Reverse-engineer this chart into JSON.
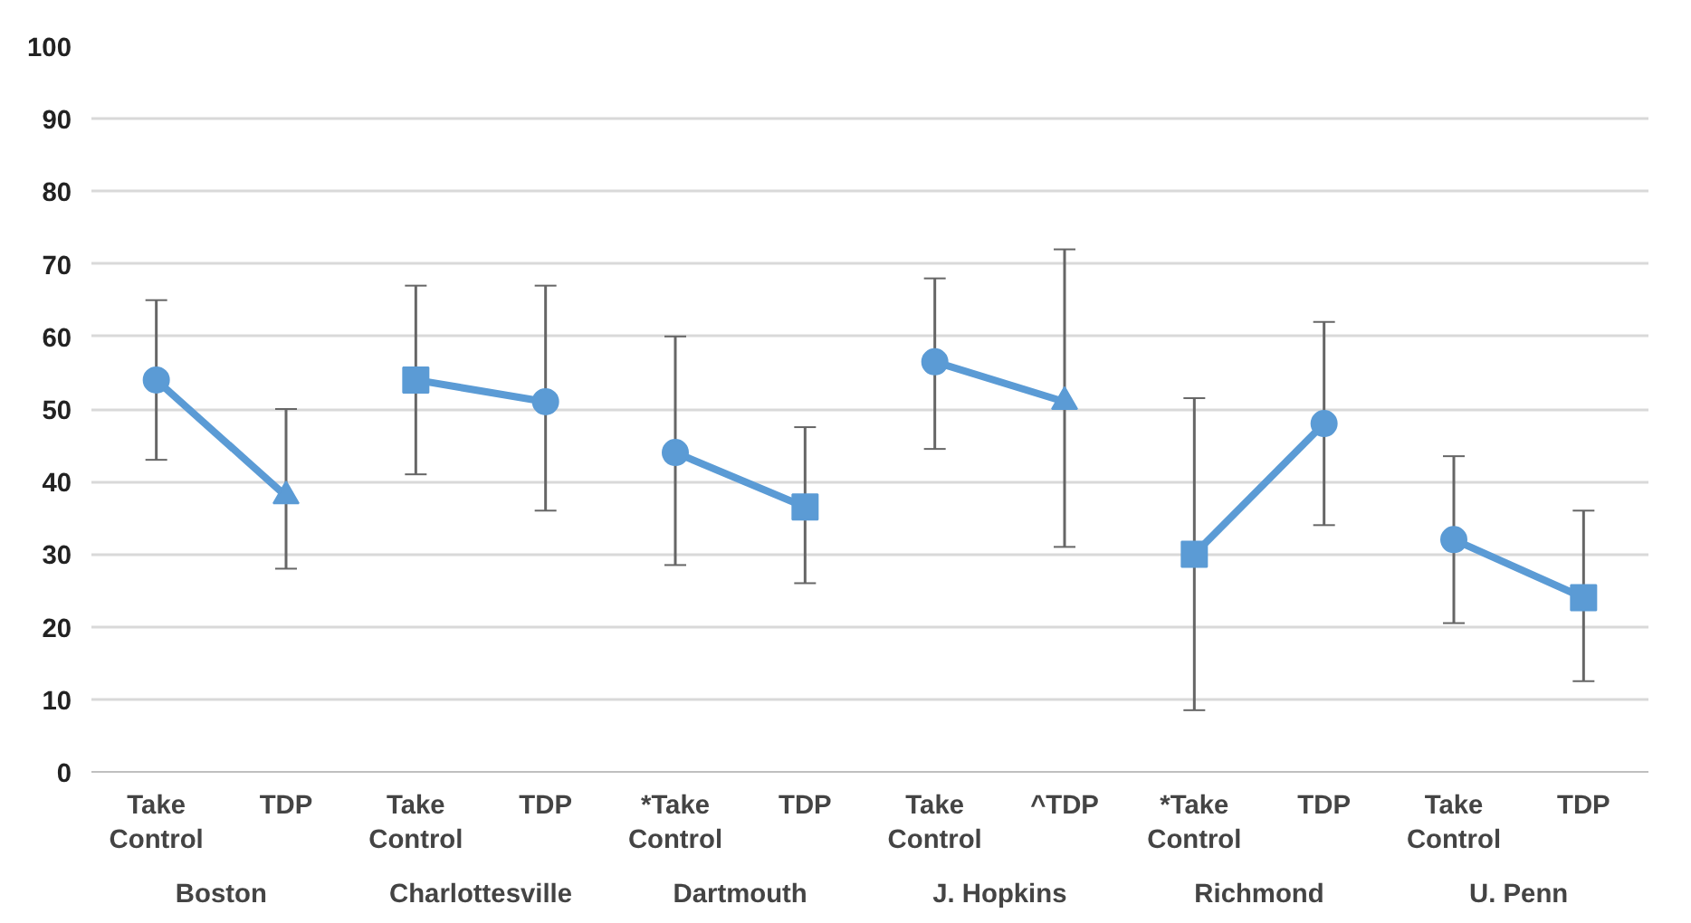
{
  "chart_data": {
    "type": "line",
    "categories": [
      "Take Control",
      "TDP",
      "Take Control",
      "TDP",
      "*Take Control",
      "TDP",
      "Take Control",
      "^TDP",
      "*Take Control",
      "TDP",
      "Take Control",
      "TDP"
    ],
    "ylim": [
      0,
      100
    ],
    "yticks": [
      0,
      10,
      20,
      30,
      40,
      50,
      60,
      70,
      80,
      90,
      100
    ],
    "grid": "y",
    "line_style": "solid",
    "annotations": [
      "Boston",
      "Charlottesville",
      "Dartmouth",
      "J. Hopkins",
      "Richmond",
      "U. Penn"
    ],
    "series": [
      {
        "color": "#5b9bd5",
        "marker": "none",
        "values": [
          54,
          38,
          null,
          null,
          null,
          null,
          null,
          null,
          null,
          null,
          null,
          null
        ],
        "errors": [
          [
            43,
            65
          ],
          [
            28,
            50
          ],
          null,
          null,
          null,
          null,
          null,
          null,
          null,
          null,
          null,
          null
        ]
      },
      {
        "color": "#5b9bd5",
        "marker": "none",
        "values": [
          null,
          null,
          54,
          51,
          null,
          null,
          null,
          null,
          null,
          null,
          null,
          null
        ],
        "errors": [
          null,
          null,
          [
            41,
            67
          ],
          [
            36,
            67
          ],
          null,
          null,
          null,
          null,
          null,
          null,
          null,
          null
        ]
      },
      {
        "color": "#5b9bd5",
        "marker": "none",
        "values": [
          null,
          null,
          null,
          null,
          44,
          36.5,
          null,
          null,
          null,
          null,
          null,
          null
        ],
        "errors": [
          null,
          null,
          null,
          null,
          [
            28.5,
            60
          ],
          [
            26,
            47.5
          ],
          null,
          null,
          null,
          null,
          null,
          null
        ]
      },
      {
        "color": "#5b9bd5",
        "marker": "none",
        "values": [
          null,
          null,
          null,
          null,
          null,
          null,
          56.5,
          51,
          null,
          null,
          null,
          null
        ],
        "errors": [
          null,
          null,
          null,
          null,
          null,
          null,
          [
            44.5,
            68
          ],
          [
            31,
            72
          ],
          null,
          null,
          null,
          null
        ]
      },
      {
        "color": "#5b9bd5",
        "marker": "none",
        "values": [
          null,
          null,
          null,
          null,
          null,
          null,
          null,
          null,
          30,
          48,
          null,
          null
        ],
        "errors": [
          null,
          null,
          null,
          null,
          null,
          null,
          null,
          null,
          [
            8.5,
            51.5
          ],
          [
            34,
            62
          ],
          null,
          null
        ]
      },
      {
        "color": "#5b9bd5",
        "marker": "none",
        "values": [
          null,
          null,
          null,
          null,
          null,
          null,
          null,
          null,
          null,
          null,
          32,
          24
        ],
        "errors": [
          null,
          null,
          null,
          null,
          null,
          null,
          null,
          null,
          null,
          null,
          [
            20.5,
            43.5
          ],
          [
            12.5,
            36
          ]
        ]
      },
      {
        "type": "scatter",
        "color": "#5b9bd5",
        "marker": "circle",
        "values": [
          54,
          null,
          null,
          51,
          44,
          null,
          56.5,
          null,
          null,
          48,
          32,
          null
        ]
      },
      {
        "type": "scatter",
        "color": "#5b9bd5",
        "marker": "triangle",
        "values": [
          null,
          38,
          null,
          null,
          null,
          null,
          null,
          51,
          null,
          null,
          null,
          null
        ]
      },
      {
        "type": "scatter",
        "color": "#5b9bd5",
        "marker": "square",
        "values": [
          null,
          null,
          54,
          null,
          null,
          36.5,
          null,
          null,
          30,
          null,
          null,
          24
        ]
      }
    ]
  }
}
